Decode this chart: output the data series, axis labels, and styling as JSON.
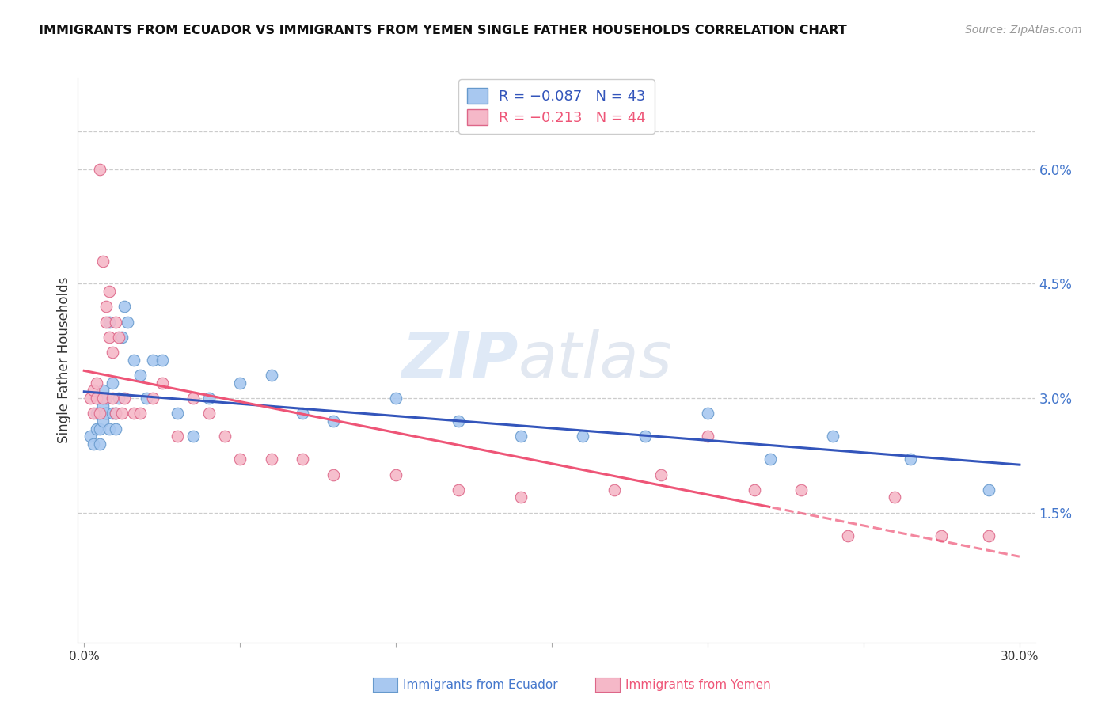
{
  "title": "IMMIGRANTS FROM ECUADOR VS IMMIGRANTS FROM YEMEN SINGLE FATHER HOUSEHOLDS CORRELATION CHART",
  "source": "Source: ZipAtlas.com",
  "ylabel": "Single Father Households",
  "x_ticks": [
    0.0,
    0.05,
    0.1,
    0.15,
    0.2,
    0.25,
    0.3
  ],
  "x_tick_labels": [
    "0.0%",
    "",
    "",
    "",
    "",
    "",
    "30.0%"
  ],
  "y_ticks_right": [
    0.015,
    0.03,
    0.045,
    0.06
  ],
  "y_tick_labels_right": [
    "1.5%",
    "3.0%",
    "4.5%",
    "6.0%"
  ],
  "xlim": [
    -0.002,
    0.305
  ],
  "ylim": [
    -0.002,
    0.072
  ],
  "ecuador_color": "#a8c8f0",
  "ecuador_edge_color": "#6699cc",
  "yemen_color": "#f5b8c8",
  "yemen_edge_color": "#dd6688",
  "ecuador_line_color": "#3355bb",
  "yemen_line_color": "#ee5577",
  "background_color": "#ffffff",
  "grid_color": "#cccccc",
  "watermark_zip": "ZIP",
  "watermark_atlas": "atlas",
  "legend_label_ecuador": "Immigrants from Ecuador",
  "legend_label_yemen": "Immigrants from Yemen",
  "ecuador_x": [
    0.002,
    0.003,
    0.004,
    0.004,
    0.005,
    0.005,
    0.006,
    0.006,
    0.006,
    0.007,
    0.007,
    0.008,
    0.008,
    0.009,
    0.009,
    0.01,
    0.01,
    0.011,
    0.012,
    0.013,
    0.014,
    0.016,
    0.018,
    0.02,
    0.022,
    0.025,
    0.03,
    0.035,
    0.04,
    0.05,
    0.06,
    0.07,
    0.08,
    0.1,
    0.12,
    0.14,
    0.16,
    0.18,
    0.2,
    0.22,
    0.24,
    0.265,
    0.29
  ],
  "ecuador_y": [
    0.025,
    0.024,
    0.026,
    0.028,
    0.024,
    0.026,
    0.027,
    0.029,
    0.031,
    0.028,
    0.03,
    0.026,
    0.04,
    0.028,
    0.032,
    0.026,
    0.028,
    0.03,
    0.038,
    0.042,
    0.04,
    0.035,
    0.033,
    0.03,
    0.035,
    0.035,
    0.028,
    0.025,
    0.03,
    0.032,
    0.033,
    0.028,
    0.027,
    0.03,
    0.027,
    0.025,
    0.025,
    0.025,
    0.028,
    0.022,
    0.025,
    0.022,
    0.018
  ],
  "yemen_x": [
    0.002,
    0.003,
    0.003,
    0.004,
    0.004,
    0.005,
    0.005,
    0.006,
    0.006,
    0.007,
    0.007,
    0.008,
    0.008,
    0.009,
    0.009,
    0.01,
    0.01,
    0.011,
    0.012,
    0.013,
    0.016,
    0.018,
    0.022,
    0.025,
    0.03,
    0.035,
    0.04,
    0.045,
    0.05,
    0.06,
    0.07,
    0.08,
    0.1,
    0.12,
    0.14,
    0.17,
    0.185,
    0.2,
    0.215,
    0.23,
    0.245,
    0.26,
    0.275,
    0.29
  ],
  "yemen_y": [
    0.03,
    0.028,
    0.031,
    0.03,
    0.032,
    0.06,
    0.028,
    0.048,
    0.03,
    0.04,
    0.042,
    0.038,
    0.044,
    0.03,
    0.036,
    0.04,
    0.028,
    0.038,
    0.028,
    0.03,
    0.028,
    0.028,
    0.03,
    0.032,
    0.025,
    0.03,
    0.028,
    0.025,
    0.022,
    0.022,
    0.022,
    0.02,
    0.02,
    0.018,
    0.017,
    0.018,
    0.02,
    0.025,
    0.018,
    0.018,
    0.012,
    0.017,
    0.012,
    0.012
  ]
}
